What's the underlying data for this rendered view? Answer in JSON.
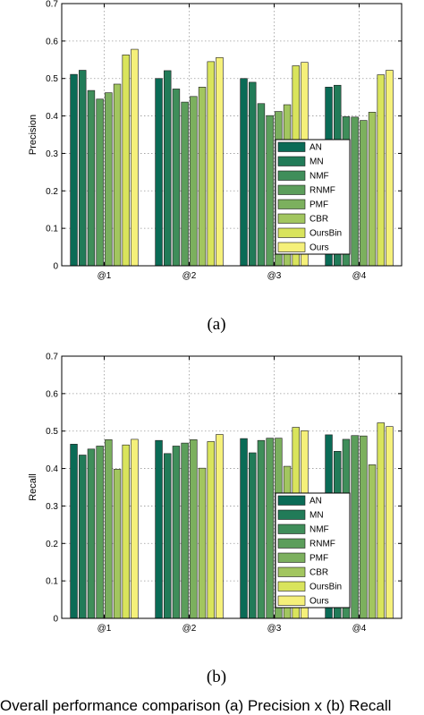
{
  "caption": "Overall performance comparison (a) Precision x (b) Recall",
  "chart_data": [
    {
      "type": "bar",
      "sublabel": "(a)",
      "ylabel": "Precision",
      "xlabel": "",
      "ylim": [
        0,
        0.7
      ],
      "yticks": [
        "0",
        "0.1",
        "0.2",
        "0.3",
        "0.4",
        "0.5",
        "0.6",
        "0.7"
      ],
      "grid": true,
      "legend_position": "lower-right",
      "categories": [
        "@1",
        "@2",
        "@3",
        "@4"
      ],
      "series": [
        {
          "name": "AN",
          "color": "#0a6b56",
          "values": [
            0.511,
            0.5,
            0.5,
            0.477
          ]
        },
        {
          "name": "MN",
          "color": "#217b58",
          "values": [
            0.522,
            0.521,
            0.49,
            0.482
          ]
        },
        {
          "name": "NMF",
          "color": "#3f8e5a",
          "values": [
            0.468,
            0.472,
            0.433,
            0.398
          ]
        },
        {
          "name": "RNMF",
          "color": "#5c9e5b",
          "values": [
            0.445,
            0.437,
            0.401,
            0.397
          ]
        },
        {
          "name": "PMF",
          "color": "#7cb05e",
          "values": [
            0.462,
            0.452,
            0.412,
            0.388
          ]
        },
        {
          "name": "CBR",
          "color": "#a2c65f",
          "values": [
            0.485,
            0.477,
            0.43,
            0.41
          ]
        },
        {
          "name": "OursBin",
          "color": "#d9e45c",
          "values": [
            0.563,
            0.545,
            0.534,
            0.51
          ]
        },
        {
          "name": "Ours",
          "color": "#f5f07a",
          "values": [
            0.578,
            0.556,
            0.543,
            0.522
          ]
        }
      ]
    },
    {
      "type": "bar",
      "sublabel": "(b)",
      "ylabel": "Recall",
      "xlabel": "",
      "ylim": [
        0,
        0.7
      ],
      "yticks": [
        "0",
        "0.1",
        "0.2",
        "0.3",
        "0.4",
        "0.5",
        "0.6",
        "0.7"
      ],
      "grid": true,
      "legend_position": "lower-right",
      "categories": [
        "@1",
        "@2",
        "@3",
        "@4"
      ],
      "series": [
        {
          "name": "AN",
          "color": "#0a6b56",
          "values": [
            0.465,
            0.475,
            0.48,
            0.49
          ]
        },
        {
          "name": "MN",
          "color": "#217b58",
          "values": [
            0.436,
            0.44,
            0.442,
            0.446
          ]
        },
        {
          "name": "NMF",
          "color": "#3f8e5a",
          "values": [
            0.452,
            0.46,
            0.475,
            0.478
          ]
        },
        {
          "name": "RNMF",
          "color": "#5c9e5b",
          "values": [
            0.46,
            0.468,
            0.481,
            0.488
          ]
        },
        {
          "name": "PMF",
          "color": "#7cb05e",
          "values": [
            0.477,
            0.477,
            0.481,
            0.487
          ]
        },
        {
          "name": "CBR",
          "color": "#a2c65f",
          "values": [
            0.398,
            0.401,
            0.406,
            0.41
          ]
        },
        {
          "name": "OursBin",
          "color": "#d9e45c",
          "values": [
            0.463,
            0.472,
            0.51,
            0.522
          ]
        },
        {
          "name": "Ours",
          "color": "#f5f07a",
          "values": [
            0.478,
            0.491,
            0.501,
            0.512
          ]
        }
      ]
    }
  ]
}
